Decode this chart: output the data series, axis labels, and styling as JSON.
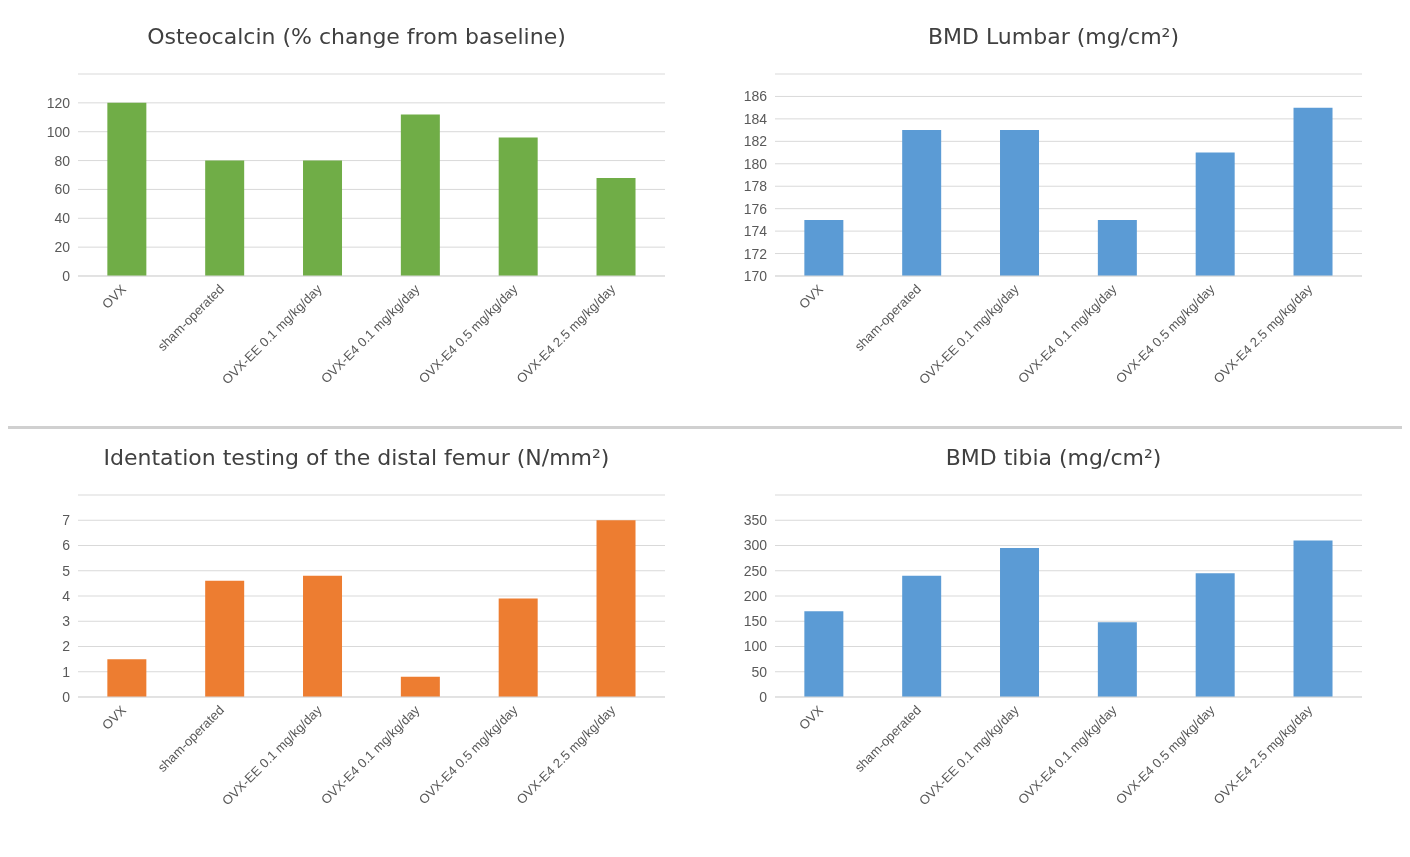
{
  "chart_data": [
    {
      "type": "bar",
      "title": "Osteocalcin (% change from baseline)",
      "categories": [
        "OVX",
        "sham-operated",
        "OVX-EE 0.1 mg/kg/day",
        "OVX-E4 0.1 mg/kg/day",
        "OVX-E4 0.5 mg/kg/day",
        "OVX-E4 2.5 mg/kg/day"
      ],
      "values": [
        120,
        80,
        80,
        112,
        96,
        68
      ],
      "color": "#70ad47",
      "ylim": [
        0,
        140
      ],
      "yticks": [
        0,
        20,
        40,
        60,
        80,
        100,
        120,
        {
          "value": 140,
          "label": null
        }
      ],
      "grid": "y"
    },
    {
      "type": "bar",
      "title": "BMD Lumbar (mg/cm²)",
      "categories": [
        "OVX",
        "sham-operated",
        "OVX-EE 0.1 mg/kg/day",
        "OVX-E4 0.1 mg/kg/day",
        "OVX-E4 0.5 mg/kg/day",
        "OVX-E4 2.5 mg/kg/day"
      ],
      "values": [
        175,
        183,
        183,
        175,
        181,
        185
      ],
      "color": "#5b9bd5",
      "ylim": [
        170,
        188
      ],
      "yticks": [
        170,
        172,
        174,
        176,
        178,
        180,
        182,
        184,
        186,
        {
          "value": 188,
          "label": null
        }
      ],
      "grid": "y"
    },
    {
      "type": "bar",
      "title": "Identation testing of the distal femur (N/mm²)",
      "categories": [
        "OVX",
        "sham-operated",
        "OVX-EE 0.1 mg/kg/day",
        "OVX-E4 0.1 mg/kg/day",
        "OVX-E4 0.5 mg/kg/day",
        "OVX-E4 2.5 mg/kg/day"
      ],
      "values": [
        1.5,
        4.6,
        4.8,
        0.8,
        3.9,
        7.0
      ],
      "color": "#ed7d31",
      "ylim": [
        0,
        8
      ],
      "yticks": [
        0,
        1,
        2,
        3,
        4,
        5,
        6,
        7,
        {
          "value": 8,
          "label": null
        }
      ],
      "grid": "y"
    },
    {
      "type": "bar",
      "title": "BMD tibia (mg/cm²)",
      "categories": [
        "OVX",
        "sham-operated",
        "OVX-EE 0.1 mg/kg/day",
        "OVX-E4 0.1 mg/kg/day",
        "OVX-E4 0.5 mg/kg/day",
        "OVX-E4 2.5 mg/kg/day"
      ],
      "values": [
        170,
        240,
        295,
        148,
        245,
        310
      ],
      "color": "#5b9bd5",
      "ylim": [
        0,
        400
      ],
      "yticks": [
        0,
        50,
        100,
        150,
        200,
        250,
        300,
        350,
        {
          "value": 400,
          "label": null
        }
      ],
      "grid": "y"
    }
  ]
}
